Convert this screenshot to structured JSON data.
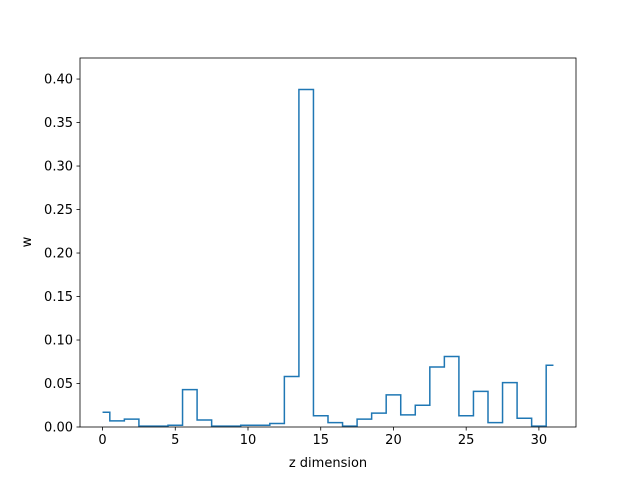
{
  "chart_data": {
    "type": "line",
    "drawstyle": "steps-mid",
    "xlabel": "z dimension",
    "ylabel": "w",
    "xlim": [
      -1.55,
      32.55
    ],
    "ylim": [
      0,
      0.4242
    ],
    "xticks": [
      0,
      5,
      10,
      15,
      20,
      25,
      30
    ],
    "xtick_labels": [
      "0",
      "5",
      "10",
      "15",
      "20",
      "25",
      "30"
    ],
    "yticks": [
      0.0,
      0.05,
      0.1,
      0.15,
      0.2,
      0.25,
      0.3,
      0.35,
      0.4
    ],
    "ytick_labels": [
      "0.00",
      "0.05",
      "0.10",
      "0.15",
      "0.20",
      "0.25",
      "0.30",
      "0.35",
      "0.40"
    ],
    "grid": false,
    "color": "#1f77b4",
    "x": [
      0,
      1,
      2,
      3,
      4,
      5,
      6,
      7,
      8,
      9,
      10,
      11,
      12,
      13,
      14,
      15,
      16,
      17,
      18,
      19,
      20,
      21,
      22,
      23,
      24,
      25,
      26,
      27,
      28,
      29,
      30,
      31
    ],
    "values": [
      0.017,
      0.007,
      0.009,
      0.001,
      0.001,
      0.002,
      0.043,
      0.008,
      0.001,
      0.001,
      0.002,
      0.002,
      0.004,
      0.058,
      0.388,
      0.013,
      0.005,
      0.001,
      0.009,
      0.016,
      0.037,
      0.014,
      0.025,
      0.069,
      0.081,
      0.013,
      0.041,
      0.005,
      0.051,
      0.01,
      0.001,
      0.071
    ]
  }
}
